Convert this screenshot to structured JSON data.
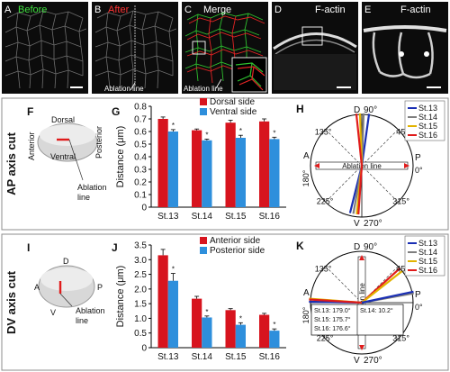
{
  "top_row": {
    "panels": [
      {
        "letter": "A",
        "title": "Before",
        "title_color": "#3ee03e"
      },
      {
        "letter": "B",
        "title": "After",
        "title_color": "#ff3333",
        "annotation": "Ablation line"
      },
      {
        "letter": "C",
        "title": "Merge",
        "title_color": "#ffffff",
        "annotation": "Ablation line"
      },
      {
        "letter": "D",
        "title": "F-actin",
        "title_color": "#ffffff"
      },
      {
        "letter": "E",
        "title": "F-actin",
        "title_color": "#ffffff"
      }
    ]
  },
  "rows": [
    {
      "side_label": "AP axis cut",
      "schematic": {
        "letter": "F",
        "dorsal": "Dorsal",
        "anterior": "Anterior",
        "posterior": "Posterior",
        "ventral": "Ventral",
        "ablation": [
          "Ablation",
          "line"
        ]
      },
      "bar_panel_letter": "G",
      "polar": {
        "letter": "H",
        "labels": {
          "d": "D",
          "deg90": "90°",
          "a": "A",
          "deg180": "180°",
          "p": "P",
          "deg0": "0°",
          "v": "V",
          "deg270": "270°",
          "deg45": "45°",
          "deg135": "135°",
          "deg225": "225°",
          "deg315": "315°",
          "ablation": "Ablation line"
        },
        "legend": [
          {
            "label": "St.13",
            "color": "#1a2fb4"
          },
          {
            "label": "St.14",
            "color": "#7e7e7e"
          },
          {
            "label": "St.15",
            "color": "#e2b300"
          },
          {
            "label": "St.16",
            "color": "#e01b1b"
          }
        ]
      }
    },
    {
      "side_label": "DV axis cut",
      "schematic": {
        "letter": "I",
        "d": "D",
        "a": "A",
        "p": "P",
        "v": "V",
        "ablation": [
          "Ablation",
          "line"
        ]
      },
      "bar_panel_letter": "J",
      "polar": {
        "letter": "K",
        "labels": {
          "d": "D",
          "deg90": "90°",
          "a": "A",
          "deg180": "180°",
          "p": "P",
          "deg0": "0°",
          "v": "V",
          "deg270": "270°",
          "deg45": "45°",
          "deg135": "135°",
          "deg225": "225°",
          "deg315": "315°",
          "ablation": "Ablation line"
        },
        "legend": [
          {
            "label": "St.13",
            "color": "#1a2fb4"
          },
          {
            "label": "St.14",
            "color": "#7e7e7e"
          },
          {
            "label": "St.15",
            "color": "#e2b300"
          },
          {
            "label": "St.16",
            "color": "#e01b1b"
          }
        ],
        "table": [
          "St.13: 179.0°",
          "St.14: 10.2°",
          "St.15: 175.7°",
          "St.16: 176.6°"
        ]
      }
    }
  ],
  "chart_data": [
    {
      "type": "bar",
      "panel": "G",
      "categories": [
        "St.13",
        "St.14",
        "St.15",
        "St.16"
      ],
      "ylabel": "Distance (μm)",
      "ylim": [
        0,
        0.8
      ],
      "yticks": [
        "0",
        "0.1",
        "0.2",
        "0.3",
        "0.4",
        "0.5",
        "0.6",
        "0.7",
        "0.8"
      ],
      "grid": false,
      "legend_position": "top-right",
      "series": [
        {
          "name": "Dorsal side",
          "color": "#d7141e",
          "values": [
            0.7,
            0.61,
            0.67,
            0.68
          ],
          "errors": [
            0.015,
            0.01,
            0.02,
            0.02
          ]
        },
        {
          "name": "Ventral side",
          "color": "#2e8fdc",
          "values": [
            0.6,
            0.53,
            0.55,
            0.54
          ],
          "errors": [
            0.015,
            0.01,
            0.02,
            0.015
          ]
        }
      ],
      "annotations": [
        "*",
        "*",
        "*",
        "*"
      ]
    },
    {
      "type": "bar",
      "panel": "J",
      "categories": [
        "St.13",
        "St.14",
        "St.15",
        "St.16"
      ],
      "ylabel": "Distance (μm)",
      "ylim": [
        0,
        3.5
      ],
      "yticks": [
        "0",
        "0.5",
        "1.0",
        "1.5",
        "2.0",
        "2.5",
        "3.0",
        "3.5"
      ],
      "grid": false,
      "legend_position": "top-right",
      "series": [
        {
          "name": "Anterior side",
          "color": "#d7141e",
          "values": [
            3.15,
            1.67,
            1.28,
            1.12
          ],
          "errors": [
            0.2,
            0.08,
            0.05,
            0.05
          ]
        },
        {
          "name": "Posterior side",
          "color": "#2e8fdc",
          "values": [
            2.28,
            1.03,
            0.78,
            0.58
          ],
          "errors": [
            0.25,
            0.05,
            0.07,
            0.06
          ]
        }
      ],
      "annotations": [
        "*",
        "*",
        "*",
        "*"
      ]
    }
  ]
}
